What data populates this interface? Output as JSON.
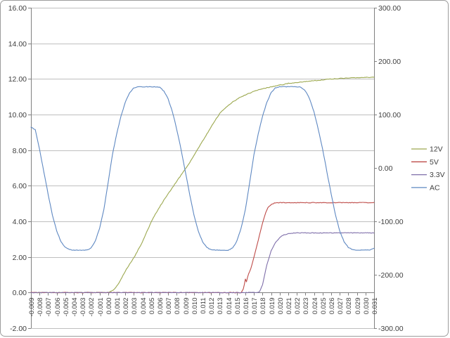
{
  "window": {
    "background": "#FFFFFF",
    "frame_border_color": "#9C9C9C"
  },
  "colors": {
    "gridline": "#BFBFBF",
    "axis_line": "#808080",
    "tick_label": "#404040",
    "legend_text": "#404040",
    "plot_background": "#FFFFFF"
  },
  "chart_data": {
    "type": "line",
    "title": "",
    "xlabel": "",
    "ylabel": "",
    "grid": true,
    "legend_position": "right-middle",
    "legend_entries": [
      "12V",
      "5V",
      "3.3V",
      "AC"
    ],
    "x_axis": {
      "min": -0.009,
      "max": 0.031,
      "tick_step": 0.001,
      "tick_labels": [
        "-0.009",
        "-0.008",
        "-0.007",
        "-0.006",
        "-0.005",
        "-0.004",
        "-0.003",
        "-0.002",
        "-0.001",
        "0.000",
        "0.001",
        "0.002",
        "0.003",
        "0.004",
        "0.005",
        "0.006",
        "0.007",
        "0.008",
        "0.009",
        "0.010",
        "0.011",
        "0.012",
        "0.013",
        "0.014",
        "0.015",
        "0.016",
        "0.017",
        "0.018",
        "0.019",
        "0.020",
        "0.021",
        "0.022",
        "0.023",
        "0.024",
        "0.025",
        "0.026",
        "0.027",
        "0.028",
        "0.029",
        "0.030",
        "0.031"
      ]
    },
    "left_y_axis": {
      "min": -2,
      "max": 16,
      "tick_step": 2,
      "tick_labels": [
        "16.00",
        "14.00",
        "12.00",
        "10.00",
        "8.00",
        "6.00",
        "4.00",
        "2.00",
        "0.00",
        "-2.00"
      ]
    },
    "right_y_axis": {
      "min": -300,
      "max": 300,
      "tick_step": 100,
      "tick_labels": [
        "300.00",
        "200.00",
        "100.00",
        "0.00",
        "-100.00",
        "-200.00",
        "-300.00"
      ]
    },
    "series": [
      {
        "name": "12V",
        "axis": "left",
        "color": "#9CA84F",
        "points": [
          [
            -0.009,
            0
          ],
          [
            0,
            0
          ],
          [
            0.0005,
            0.1
          ],
          [
            0.001,
            0.35
          ],
          [
            0.0015,
            0.75
          ],
          [
            0.002,
            1.2
          ],
          [
            0.0025,
            1.6
          ],
          [
            0.003,
            1.95
          ],
          [
            0.0035,
            2.4
          ],
          [
            0.004,
            2.85
          ],
          [
            0.0045,
            3.4
          ],
          [
            0.005,
            3.95
          ],
          [
            0.0055,
            4.4
          ],
          [
            0.006,
            4.8
          ],
          [
            0.0065,
            5.2
          ],
          [
            0.007,
            5.55
          ],
          [
            0.0075,
            5.9
          ],
          [
            0.008,
            6.25
          ],
          [
            0.0085,
            6.6
          ],
          [
            0.009,
            6.95
          ],
          [
            0.0095,
            7.3
          ],
          [
            0.01,
            7.7
          ],
          [
            0.0105,
            8.1
          ],
          [
            0.011,
            8.5
          ],
          [
            0.0115,
            8.9
          ],
          [
            0.012,
            9.3
          ],
          [
            0.0125,
            9.7
          ],
          [
            0.013,
            10.05
          ],
          [
            0.0135,
            10.3
          ],
          [
            0.014,
            10.5
          ],
          [
            0.0145,
            10.7
          ],
          [
            0.015,
            10.85
          ],
          [
            0.0155,
            11
          ],
          [
            0.016,
            11.1
          ],
          [
            0.017,
            11.3
          ],
          [
            0.018,
            11.45
          ],
          [
            0.019,
            11.55
          ],
          [
            0.02,
            11.65
          ],
          [
            0.021,
            11.75
          ],
          [
            0.022,
            11.8
          ],
          [
            0.023,
            11.85
          ],
          [
            0.024,
            11.9
          ],
          [
            0.025,
            11.95
          ],
          [
            0.026,
            12
          ],
          [
            0.028,
            12.05
          ],
          [
            0.031,
            12.1
          ]
        ]
      },
      {
        "name": "5V",
        "axis": "left",
        "color": "#BE4B48",
        "points": [
          [
            -0.009,
            0
          ],
          [
            0.0155,
            0
          ],
          [
            0.0158,
            0.25
          ],
          [
            0.016,
            0.75
          ],
          [
            0.0161,
            0.55
          ],
          [
            0.0163,
            0.95
          ],
          [
            0.0166,
            1.3
          ],
          [
            0.017,
            2.0
          ],
          [
            0.0175,
            2.95
          ],
          [
            0.018,
            3.9
          ],
          [
            0.0183,
            4.4
          ],
          [
            0.0186,
            4.75
          ],
          [
            0.019,
            4.95
          ],
          [
            0.0194,
            5.03
          ],
          [
            0.02,
            5.05
          ],
          [
            0.031,
            5.05
          ]
        ]
      },
      {
        "name": "3.3V",
        "axis": "left",
        "color": "#7F6FAA",
        "points": [
          [
            -0.009,
            0
          ],
          [
            0.0176,
            0
          ],
          [
            0.018,
            0.45
          ],
          [
            0.0185,
            1.55
          ],
          [
            0.019,
            2.35
          ],
          [
            0.0195,
            2.8
          ],
          [
            0.02,
            3.1
          ],
          [
            0.0205,
            3.25
          ],
          [
            0.021,
            3.3
          ],
          [
            0.0215,
            3.33
          ],
          [
            0.022,
            3.35
          ],
          [
            0.031,
            3.35
          ]
        ]
      },
      {
        "name": "AC",
        "axis": "right",
        "color": "#5E88C2",
        "points": [
          [
            -0.009,
            76
          ],
          [
            -0.0085,
            72
          ],
          [
            -0.008,
            35
          ],
          [
            -0.0075,
            -7
          ],
          [
            -0.007,
            -49
          ],
          [
            -0.0065,
            -88
          ],
          [
            -0.006,
            -118
          ],
          [
            -0.0055,
            -138
          ],
          [
            -0.005,
            -149
          ],
          [
            -0.0045,
            -153
          ],
          [
            -0.004,
            -154
          ],
          [
            -0.0035,
            -154
          ],
          [
            -0.003,
            -154
          ],
          [
            -0.0025,
            -154
          ],
          [
            -0.002,
            -150
          ],
          [
            -0.0015,
            -137
          ],
          [
            -0.001,
            -113
          ],
          [
            -0.0005,
            -78
          ],
          [
            0,
            -27
          ],
          [
            0.0005,
            25
          ],
          [
            0.001,
            64
          ],
          [
            0.0015,
            97
          ],
          [
            0.002,
            123
          ],
          [
            0.0025,
            141
          ],
          [
            0.003,
            150
          ],
          [
            0.0035,
            152
          ],
          [
            0.004,
            152
          ],
          [
            0.0045,
            152
          ],
          [
            0.005,
            152
          ],
          [
            0.0055,
            152
          ],
          [
            0.006,
            151
          ],
          [
            0.0065,
            144
          ],
          [
            0.007,
            129
          ],
          [
            0.0075,
            105
          ],
          [
            0.008,
            72
          ],
          [
            0.0085,
            35
          ],
          [
            0.009,
            -7
          ],
          [
            0.0095,
            -49
          ],
          [
            0.01,
            -88
          ],
          [
            0.0105,
            -118
          ],
          [
            0.011,
            -138
          ],
          [
            0.0115,
            -149
          ],
          [
            0.012,
            -153
          ],
          [
            0.0125,
            -154
          ],
          [
            0.013,
            -154
          ],
          [
            0.0135,
            -154
          ],
          [
            0.014,
            -154
          ],
          [
            0.0145,
            -150
          ],
          [
            0.015,
            -137
          ],
          [
            0.0155,
            -113
          ],
          [
            0.016,
            -78
          ],
          [
            0.0165,
            -27
          ],
          [
            0.017,
            25
          ],
          [
            0.0175,
            64
          ],
          [
            0.018,
            97
          ],
          [
            0.0185,
            123
          ],
          [
            0.019,
            141
          ],
          [
            0.0195,
            150
          ],
          [
            0.02,
            152
          ],
          [
            0.0205,
            152
          ],
          [
            0.021,
            152
          ],
          [
            0.0215,
            152
          ],
          [
            0.022,
            152
          ],
          [
            0.0225,
            151
          ],
          [
            0.023,
            144
          ],
          [
            0.0235,
            129
          ],
          [
            0.024,
            105
          ],
          [
            0.0245,
            72
          ],
          [
            0.025,
            35
          ],
          [
            0.0255,
            -7
          ],
          [
            0.026,
            -49
          ],
          [
            0.0265,
            -88
          ],
          [
            0.027,
            -118
          ],
          [
            0.0275,
            -138
          ],
          [
            0.028,
            -149
          ],
          [
            0.0285,
            -153
          ],
          [
            0.029,
            -154
          ],
          [
            0.0295,
            -154
          ],
          [
            0.03,
            -154
          ],
          [
            0.0305,
            -154
          ],
          [
            0.031,
            -150
          ]
        ]
      }
    ]
  }
}
